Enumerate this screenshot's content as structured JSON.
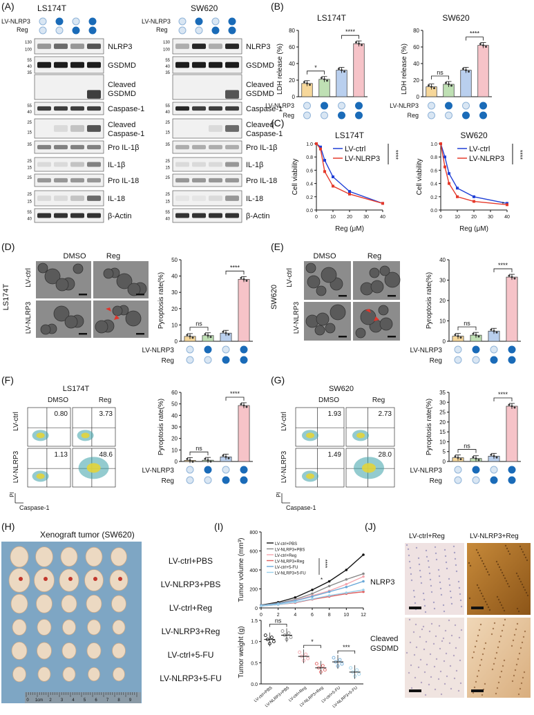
{
  "panels": {
    "A": "(A)",
    "B": "(B)",
    "C": "(C)",
    "D": "(D)",
    "E": "(E)",
    "F": "(F)",
    "G": "(G)",
    "H": "(H)",
    "I": "(I)",
    "J": "(J)"
  },
  "cond": {
    "nlrp3": "LV-NLRP3",
    "reg": "Reg",
    "nlrp3_on": [
      false,
      true,
      false,
      true
    ],
    "reg_on": [
      false,
      false,
      true,
      true
    ]
  },
  "A": {
    "cells": [
      "LS174T",
      "SW620"
    ],
    "blots": [
      {
        "label": "NLRP3",
        "mw": [
          "130",
          "100"
        ]
      },
      {
        "label": "GSDMD",
        "mw": [
          "55",
          "40",
          "35"
        ]
      },
      {
        "label": "Cleaved GSDMD",
        "lines": [
          "Cleaved",
          "GSDMD"
        ]
      },
      {
        "label": "Caspase-1",
        "mw": [
          "55",
          "40"
        ]
      },
      {
        "label": "Cleaved Caspase-1",
        "lines": [
          "Cleaved",
          "Caspase-1"
        ],
        "mw": [
          "25",
          "15"
        ]
      },
      {
        "label": "Pro IL-1β",
        "mw": [
          "35"
        ]
      },
      {
        "label": "IL-1β",
        "mw": [
          "25",
          "15"
        ]
      },
      {
        "label": "Pro IL-18",
        "mw": [
          "25"
        ]
      },
      {
        "label": "IL-18",
        "mw": [
          "25",
          "15"
        ]
      },
      {
        "label": "β-Actin",
        "mw": [
          "55",
          "40"
        ]
      }
    ]
  },
  "B": {
    "ylabel": "LDH release (%)",
    "charts": [
      {
        "title": "LS174T",
        "ylim": [
          0,
          80
        ],
        "yticks": [
          "0",
          "20",
          "40",
          "60",
          "80"
        ],
        "values": [
          16,
          21,
          32,
          64
        ],
        "sig": [
          "*",
          "****"
        ]
      },
      {
        "title": "SW620",
        "ylim": [
          0,
          80
        ],
        "yticks": [
          "0",
          "20",
          "40",
          "60",
          "80"
        ],
        "values": [
          12,
          15,
          32,
          62
        ],
        "sig": [
          "ns",
          "****"
        ]
      }
    ],
    "colors": [
      "#f6d79a",
      "#bfe0b4",
      "#b9cfee",
      "#f6c3c8"
    ]
  },
  "C": {
    "ylabel": "Cell viability",
    "xlabel": "Reg (μM)",
    "legend": [
      "LV-ctrl",
      "LV-NLRP3"
    ],
    "xticks": [
      "0",
      "10",
      "20",
      "30",
      "40"
    ],
    "yticks": [
      "0.0",
      "0.2",
      "0.4",
      "0.6",
      "0.8",
      "1.0"
    ],
    "charts": [
      {
        "title": "LS174T",
        "x": [
          0,
          2.5,
          5,
          10,
          20,
          40
        ],
        "ctrl": [
          1.0,
          0.95,
          0.75,
          0.5,
          0.28,
          0.1
        ],
        "nlrp3": [
          1.0,
          0.92,
          0.58,
          0.36,
          0.24,
          0.1
        ],
        "sig": "****"
      },
      {
        "title": "SW620",
        "x": [
          0,
          2.5,
          5,
          10,
          20,
          40
        ],
        "ctrl": [
          1.0,
          0.8,
          0.55,
          0.33,
          0.2,
          0.1
        ],
        "nlrp3": [
          1.0,
          0.65,
          0.4,
          0.2,
          0.13,
          0.08
        ],
        "sig": "****",
        "sig2": "*"
      }
    ]
  },
  "D": {
    "cell": "LS174T",
    "cols": [
      "DMSO",
      "Reg"
    ],
    "rows": [
      "LV-ctrl",
      "LV-NLRP3"
    ],
    "ylabel": "Pyroptosis rate(%)",
    "yticks": [
      "0",
      "10",
      "20",
      "30",
      "40",
      "50"
    ],
    "values": [
      3,
      3.5,
      5,
      38
    ],
    "sig": [
      "ns",
      "****"
    ]
  },
  "E": {
    "cell": "SW620",
    "cols": [
      "DMSO",
      "Reg"
    ],
    "rows": [
      "LV-ctrl",
      "LV-NLRP3"
    ],
    "ylabel": "Pyroptosis rate(%)",
    "yticks": [
      "0",
      "10",
      "20",
      "30",
      "40"
    ],
    "values": [
      2.5,
      3,
      5,
      31.5
    ],
    "sig": [
      "ns",
      "****"
    ]
  },
  "F": {
    "cell": "LS174T",
    "cols": [
      "DMSO",
      "Reg"
    ],
    "rows": [
      "LV-ctrl",
      "LV-NLRP3"
    ],
    "pct": [
      "0.80",
      "3.73",
      "1.13",
      "48.6"
    ],
    "ylabel": "Pyroptosis rate(%)",
    "yticks": [
      "0",
      "10",
      "20",
      "30",
      "40",
      "50",
      "60"
    ],
    "values": [
      1,
      1.1,
      4,
      48.6
    ],
    "sig": [
      "ns",
      "****"
    ],
    "xaxis": "Caspase-1",
    "yaxis": "PI"
  },
  "G": {
    "cell": "SW620",
    "cols": [
      "DMSO",
      "Reg"
    ],
    "rows": [
      "LV-ctrl",
      "LV-NLRP3"
    ],
    "pct": [
      "1.93",
      "2.73",
      "1.49",
      "28.0"
    ],
    "ylabel": "Pyroptosis rate(%)",
    "yticks": [
      "0",
      "5",
      "10",
      "15",
      "20",
      "25",
      "30",
      "35"
    ],
    "values": [
      1.9,
      1.5,
      2.7,
      28
    ],
    "sig": [
      "ns",
      "****"
    ],
    "xaxis": "Caspase-1",
    "yaxis": "PI"
  },
  "H": {
    "title": "Xenograft tumor (SW620)",
    "groups": [
      "LV-ctrl+PBS",
      "LV-NLRP3+PBS",
      "LV-ctrl+Reg",
      "LV-NLRP3+Reg",
      "LV-ctrl+5-FU",
      "LV-NLRP3+5-FU"
    ],
    "ruler": [
      "0",
      "1cm",
      "2",
      "3",
      "4",
      "5",
      "6",
      "7",
      "8",
      "9"
    ]
  },
  "I": {
    "vol": {
      "ylabel": "Tumor volume (mm³)",
      "yticks": [
        "0",
        "200",
        "400",
        "600",
        "800"
      ],
      "xticks": [
        "0",
        "2",
        "4",
        "6",
        "8",
        "10",
        "12"
      ],
      "days": [
        0,
        2,
        4,
        6,
        8,
        10,
        12
      ],
      "series": [
        {
          "name": "LV-ctrl+PBS",
          "color": "#111111",
          "values": [
            30,
            60,
            110,
            190,
            280,
            400,
            560
          ]
        },
        {
          "name": "LV-NLRP3+PBS",
          "color": "#888888",
          "values": [
            30,
            50,
            90,
            150,
            230,
            300,
            360
          ]
        },
        {
          "name": "LV-ctrl+Reg",
          "color": "#f4a6ae",
          "values": [
            25,
            45,
            80,
            130,
            180,
            250,
            330
          ]
        },
        {
          "name": "LV-NLRP3+Reg",
          "color": "#e06060",
          "values": [
            20,
            35,
            55,
            90,
            120,
            150,
            170
          ]
        },
        {
          "name": "LV-ctrl+5-FU",
          "color": "#6aa8d8",
          "values": [
            25,
            45,
            75,
            120,
            170,
            220,
            280
          ]
        },
        {
          "name": "LV-NLRP3+5-FU",
          "color": "#9bd0ea",
          "values": [
            20,
            35,
            60,
            95,
            130,
            160,
            190
          ]
        }
      ],
      "sig": [
        "****",
        "*"
      ]
    },
    "weight": {
      "ylabel": "Tumor weight (g)",
      "yticks": [
        "0.0",
        "0.5",
        "1.0",
        "1.5"
      ],
      "ylim": [
        0,
        1.5
      ],
      "categories": [
        "LV-ctrl+PBS",
        "LV-NLRP3+PBS",
        "LV-ctrl+Reg",
        "LV-NLRP3+Reg",
        "LV-ctrl+5-FU",
        "LV-NLRP3+5-FU"
      ],
      "values": [
        1.05,
        1.15,
        0.65,
        0.38,
        0.52,
        0.28
      ],
      "sig": [
        "ns",
        "*",
        "***"
      ]
    }
  },
  "J": {
    "cols": [
      "LV-ctrl+Reg",
      "LV-NLRP3+Reg"
    ],
    "rows": [
      "NLRP3",
      "Cleaved GSDMD"
    ],
    "row_lines": [
      [
        "NLRP3"
      ],
      [
        "Cleaved",
        "GSDMD"
      ]
    ]
  }
}
